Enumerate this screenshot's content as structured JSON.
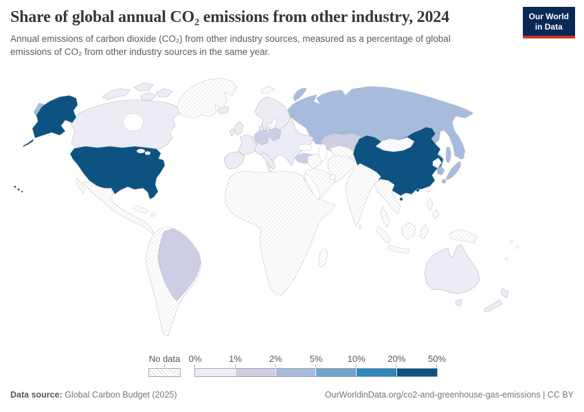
{
  "header": {
    "title": "Share of global annual CO₂ emissions from other industry, 2024",
    "subtitle": "Annual emissions of carbon dioxide (CO₂) from other industry sources, measured as a percentage of global emissions of CO₂ from other industry sources in the same year.",
    "logo": {
      "line1": "Our World",
      "line2": "in Data",
      "bg_color": "#082856",
      "accent_color": "#cf3429"
    }
  },
  "legend": {
    "no_data_label": "No data",
    "tick_labels": [
      "0%",
      "1%",
      "2%",
      "5%",
      "10%",
      "20%",
      "50%"
    ],
    "bucket_colors": [
      "#ececf4",
      "#cdcee3",
      "#a7bcdc",
      "#6fa3cd",
      "#2f87bb",
      "#0d5381"
    ]
  },
  "footer": {
    "source_label": "Data source:",
    "source_value": " Global Carbon Budget (2025)",
    "link": "OurWorldinData.org/co2-and-greenhouse-gas-emissions | CC BY"
  },
  "chart_data": {
    "type": "heatmap",
    "subtype": "choropleth_world_map",
    "title": "Share of global annual CO₂ emissions from other industry, 2024",
    "unit": "%",
    "legend_position": "bottom",
    "color_scale": {
      "bin_edges": [
        "0%",
        "1%",
        "2%",
        "5%",
        "10%",
        "20%",
        "50%"
      ],
      "bin_colors": [
        "#ececf4",
        "#cdcee3",
        "#a7bcdc",
        "#6fa3cd",
        "#2f87bb",
        "#0d5381"
      ],
      "no_data": {
        "label": "No data",
        "style": "diagonal-hatch"
      }
    },
    "values": [
      {
        "id": "united-states",
        "country": "United States",
        "bin": "20-50%",
        "bin_index": 5
      },
      {
        "id": "china",
        "country": "China",
        "bin": "20-50%",
        "bin_index": 5
      },
      {
        "id": "russia",
        "country": "Russia",
        "bin": "2-5%",
        "bin_index": 2
      },
      {
        "id": "japan",
        "country": "Japan",
        "bin": "2-5%",
        "bin_index": 2
      },
      {
        "id": "south-korea",
        "country": "South Korea",
        "bin": "2-5%",
        "bin_index": 2
      },
      {
        "id": "brazil",
        "country": "Brazil",
        "bin": "1-2%",
        "bin_index": 1
      },
      {
        "id": "kazakhstan",
        "country": "Kazakhstan",
        "bin": "1-2%",
        "bin_index": 1
      },
      {
        "id": "germany",
        "country": "Germany",
        "bin": "1-2%",
        "bin_index": 1
      },
      {
        "id": "poland",
        "country": "Poland",
        "bin": "1-2%",
        "bin_index": 1
      },
      {
        "id": "turkey",
        "country": "Turkey",
        "bin": "1-2%",
        "bin_index": 1
      },
      {
        "id": "canada",
        "country": "Canada",
        "bin": "0-1%",
        "bin_index": 0
      },
      {
        "id": "australia",
        "country": "Australia",
        "bin": "0-1%",
        "bin_index": 0
      },
      {
        "id": "new-zealand",
        "country": "New Zealand",
        "bin": "0-1%",
        "bin_index": 0
      },
      {
        "id": "europe-other",
        "country": "Rest of Europe (incl. Iceland, UK, France, Spain, Italy, Scandinavia, Ukraine)",
        "bin": "0-1%",
        "bin_index": 0
      },
      {
        "id": "greenland",
        "country": "Greenland",
        "bin": "No data",
        "bin_index": -1
      },
      {
        "id": "mexico-central-america",
        "country": "Mexico & Central America & Caribbean",
        "bin": "No data",
        "bin_index": -1
      },
      {
        "id": "south-america-other",
        "country": "South America (except Brazil)",
        "bin": "No data",
        "bin_index": -1
      },
      {
        "id": "africa",
        "country": "Africa",
        "bin": "No data",
        "bin_index": -1
      },
      {
        "id": "middle-east",
        "country": "Middle East & Central Asia",
        "bin": "No data",
        "bin_index": -1
      },
      {
        "id": "india",
        "country": "India & South Asia",
        "bin": "No data",
        "bin_index": -1
      },
      {
        "id": "mongolia",
        "country": "Mongolia",
        "bin": "No data",
        "bin_index": -1
      },
      {
        "id": "north-korea",
        "country": "North Korea",
        "bin": "No data",
        "bin_index": -1
      },
      {
        "id": "taiwan",
        "country": "Taiwan",
        "bin": "No data",
        "bin_index": -1
      },
      {
        "id": "southeast-asia",
        "country": "Southeast Asia, Indonesia, Philippines, New Guinea, Pacific islands",
        "bin": "No data",
        "bin_index": -1
      },
      {
        "id": "svalbard",
        "country": "Svalbard",
        "bin": "No data",
        "bin_index": -1
      }
    ]
  }
}
